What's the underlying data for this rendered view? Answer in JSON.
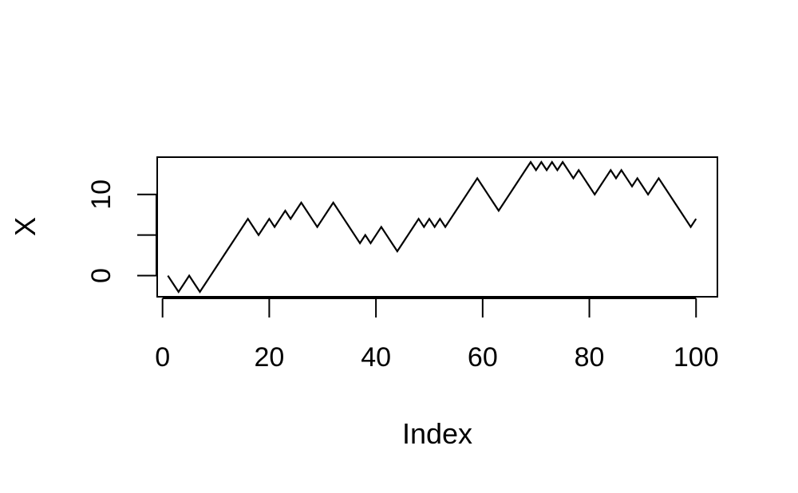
{
  "chart_data": {
    "type": "line",
    "title": "",
    "xlabel": "Index",
    "ylabel": "X",
    "xlim": [
      -1,
      104
    ],
    "ylim": [
      -2.6,
      14.6
    ],
    "x_ticks": [
      0,
      20,
      40,
      60,
      80,
      100
    ],
    "x_tick_labels": [
      "0",
      "20",
      "40",
      "60",
      "80",
      "100"
    ],
    "y_ticks": [
      0,
      5,
      10
    ],
    "y_tick_labels": [
      "0",
      "",
      "10"
    ],
    "grid": false,
    "line_color": "#000000",
    "series": [
      {
        "x": [
          1,
          2,
          3,
          4,
          5,
          6,
          7,
          8,
          9,
          10,
          11,
          12,
          13,
          14,
          15,
          16,
          17,
          18,
          19,
          20,
          21,
          22,
          23,
          24,
          25,
          26,
          27,
          28,
          29,
          30,
          31,
          32,
          33,
          34,
          35,
          36,
          37,
          38,
          39,
          40,
          41,
          42,
          43,
          44,
          45,
          46,
          47,
          48,
          49,
          50,
          51,
          52,
          53,
          54,
          55,
          56,
          57,
          58,
          59,
          60,
          61,
          62,
          63,
          64,
          65,
          66,
          67,
          68,
          69,
          70,
          71,
          72,
          73,
          74,
          75,
          76,
          77,
          78,
          79,
          80,
          81,
          82,
          83,
          84,
          85,
          86,
          87,
          88,
          89,
          90,
          91,
          92,
          93,
          94,
          95,
          96,
          97,
          98,
          99,
          100
        ],
        "values": [
          0,
          -1,
          -2,
          -1,
          0,
          -1,
          -2,
          -1,
          0,
          1,
          2,
          3,
          4,
          5,
          6,
          7,
          6,
          5,
          6,
          7,
          6,
          7,
          8,
          7,
          8,
          9,
          8,
          7,
          6,
          7,
          8,
          9,
          8,
          7,
          6,
          5,
          4,
          5,
          4,
          5,
          6,
          5,
          4,
          3,
          4,
          5,
          6,
          7,
          6,
          7,
          6,
          7,
          6,
          7,
          8,
          9,
          10,
          11,
          12,
          11,
          10,
          9,
          8,
          9,
          10,
          11,
          12,
          13,
          14,
          13,
          14,
          13,
          14,
          13,
          14,
          13,
          12,
          13,
          12,
          11,
          10,
          11,
          12,
          13,
          12,
          13,
          12,
          11,
          12,
          11,
          10,
          11,
          12,
          11,
          10,
          9,
          8,
          7,
          6,
          7
        ]
      }
    ]
  }
}
